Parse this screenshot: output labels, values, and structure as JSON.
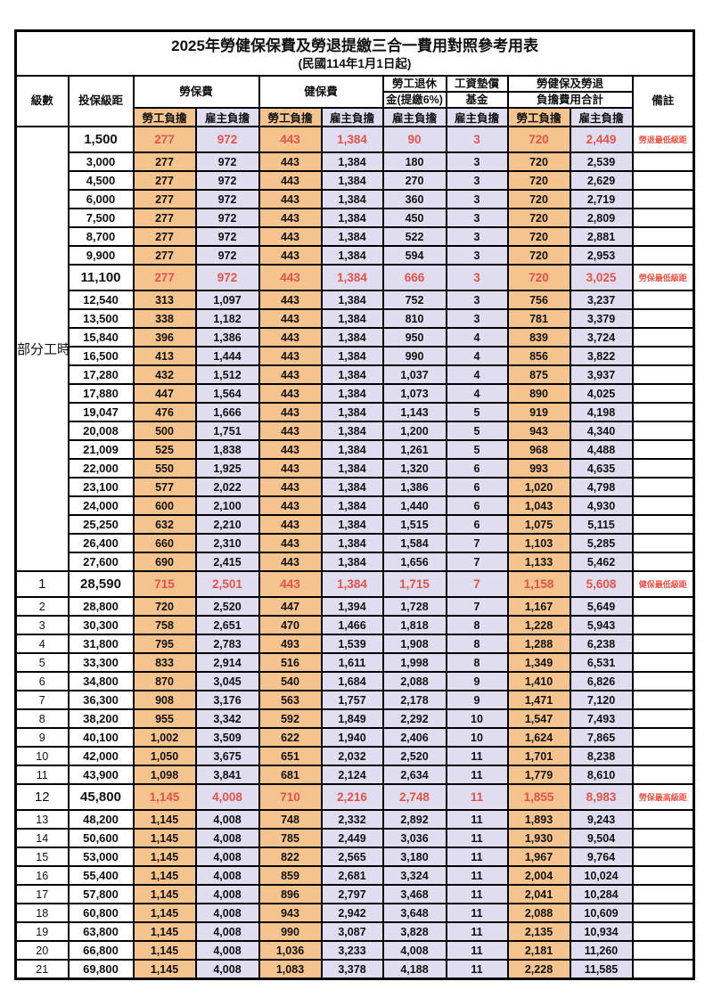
{
  "title": "2025年勞健保保費及勞退提繳三合一費用對照參考用表",
  "subtitle": "(民國114年1月1日起)",
  "header": {
    "level": "級數",
    "bracket": "投保級距",
    "labor_insurance": "勞保費",
    "health_insurance": "健保費",
    "pension_line1": "勞工退休",
    "pension_line2": "金(提繳6%)",
    "wage_fund_line1": "工資墊償",
    "wage_fund_line2": "基金",
    "total_line1": "勞健保及勞退",
    "total_line2": "負擔費用合計",
    "remark": "備註",
    "employee_share": "勞工負擔",
    "employer_share": "雇主負擔"
  },
  "part_time_label": "部分工時",
  "part_time_span": 23,
  "colors": {
    "employee_bg": "#f5c48e",
    "employer_bg": "#dfddef",
    "highlight_text": "#e2544a",
    "remark_text": "#ef5347",
    "border": "#000000"
  },
  "rows": [
    {
      "level": "",
      "bracket": "1,500",
      "cells": [
        "277",
        "972",
        "443",
        "1,384",
        "90",
        "3",
        "720",
        "2,449"
      ],
      "remark": "勞退最低級距",
      "highlight": true
    },
    {
      "level": "",
      "bracket": "3,000",
      "cells": [
        "277",
        "972",
        "443",
        "1,384",
        "180",
        "3",
        "720",
        "2,539"
      ],
      "remark": "",
      "highlight": false
    },
    {
      "level": "",
      "bracket": "4,500",
      "cells": [
        "277",
        "972",
        "443",
        "1,384",
        "270",
        "3",
        "720",
        "2,629"
      ],
      "remark": "",
      "highlight": false
    },
    {
      "level": "",
      "bracket": "6,000",
      "cells": [
        "277",
        "972",
        "443",
        "1,384",
        "360",
        "3",
        "720",
        "2,719"
      ],
      "remark": "",
      "highlight": false
    },
    {
      "level": "",
      "bracket": "7,500",
      "cells": [
        "277",
        "972",
        "443",
        "1,384",
        "450",
        "3",
        "720",
        "2,809"
      ],
      "remark": "",
      "highlight": false
    },
    {
      "level": "",
      "bracket": "8,700",
      "cells": [
        "277",
        "972",
        "443",
        "1,384",
        "522",
        "3",
        "720",
        "2,881"
      ],
      "remark": "",
      "highlight": false
    },
    {
      "level": "",
      "bracket": "9,900",
      "cells": [
        "277",
        "972",
        "443",
        "1,384",
        "594",
        "3",
        "720",
        "2,953"
      ],
      "remark": "",
      "highlight": false
    },
    {
      "level": "",
      "bracket": "11,100",
      "cells": [
        "277",
        "972",
        "443",
        "1,384",
        "666",
        "3",
        "720",
        "3,025"
      ],
      "remark": "勞保最低級距",
      "highlight": true
    },
    {
      "level": "",
      "bracket": "12,540",
      "cells": [
        "313",
        "1,097",
        "443",
        "1,384",
        "752",
        "3",
        "756",
        "3,237"
      ],
      "remark": "",
      "highlight": false
    },
    {
      "level": "",
      "bracket": "13,500",
      "cells": [
        "338",
        "1,182",
        "443",
        "1,384",
        "810",
        "3",
        "781",
        "3,379"
      ],
      "remark": "",
      "highlight": false
    },
    {
      "level": "",
      "bracket": "15,840",
      "cells": [
        "396",
        "1,386",
        "443",
        "1,384",
        "950",
        "4",
        "839",
        "3,724"
      ],
      "remark": "",
      "highlight": false
    },
    {
      "level": "",
      "bracket": "16,500",
      "cells": [
        "413",
        "1,444",
        "443",
        "1,384",
        "990",
        "4",
        "856",
        "3,822"
      ],
      "remark": "",
      "highlight": false
    },
    {
      "level": "",
      "bracket": "17,280",
      "cells": [
        "432",
        "1,512",
        "443",
        "1,384",
        "1,037",
        "4",
        "875",
        "3,937"
      ],
      "remark": "",
      "highlight": false
    },
    {
      "level": "",
      "bracket": "17,880",
      "cells": [
        "447",
        "1,564",
        "443",
        "1,384",
        "1,073",
        "4",
        "890",
        "4,025"
      ],
      "remark": "",
      "highlight": false
    },
    {
      "level": "",
      "bracket": "19,047",
      "cells": [
        "476",
        "1,666",
        "443",
        "1,384",
        "1,143",
        "5",
        "919",
        "4,198"
      ],
      "remark": "",
      "highlight": false
    },
    {
      "level": "",
      "bracket": "20,008",
      "cells": [
        "500",
        "1,751",
        "443",
        "1,384",
        "1,200",
        "5",
        "943",
        "4,340"
      ],
      "remark": "",
      "highlight": false
    },
    {
      "level": "",
      "bracket": "21,009",
      "cells": [
        "525",
        "1,838",
        "443",
        "1,384",
        "1,261",
        "5",
        "968",
        "4,488"
      ],
      "remark": "",
      "highlight": false
    },
    {
      "level": "",
      "bracket": "22,000",
      "cells": [
        "550",
        "1,925",
        "443",
        "1,384",
        "1,320",
        "6",
        "993",
        "4,635"
      ],
      "remark": "",
      "highlight": false
    },
    {
      "level": "",
      "bracket": "23,100",
      "cells": [
        "577",
        "2,022",
        "443",
        "1,384",
        "1,386",
        "6",
        "1,020",
        "4,798"
      ],
      "remark": "",
      "highlight": false
    },
    {
      "level": "",
      "bracket": "24,000",
      "cells": [
        "600",
        "2,100",
        "443",
        "1,384",
        "1,440",
        "6",
        "1,043",
        "4,930"
      ],
      "remark": "",
      "highlight": false
    },
    {
      "level": "",
      "bracket": "25,250",
      "cells": [
        "632",
        "2,210",
        "443",
        "1,384",
        "1,515",
        "6",
        "1,075",
        "5,115"
      ],
      "remark": "",
      "highlight": false
    },
    {
      "level": "",
      "bracket": "26,400",
      "cells": [
        "660",
        "2,310",
        "443",
        "1,384",
        "1,584",
        "7",
        "1,103",
        "5,285"
      ],
      "remark": "",
      "highlight": false
    },
    {
      "level": "",
      "bracket": "27,600",
      "cells": [
        "690",
        "2,415",
        "443",
        "1,384",
        "1,656",
        "7",
        "1,133",
        "5,462"
      ],
      "remark": "",
      "highlight": false
    },
    {
      "level": "1",
      "bracket": "28,590",
      "cells": [
        "715",
        "2,501",
        "443",
        "1,384",
        "1,715",
        "7",
        "1,158",
        "5,608"
      ],
      "remark": "健保最低級距",
      "highlight": true
    },
    {
      "level": "2",
      "bracket": "28,800",
      "cells": [
        "720",
        "2,520",
        "447",
        "1,394",
        "1,728",
        "7",
        "1,167",
        "5,649"
      ],
      "remark": "",
      "highlight": false
    },
    {
      "level": "3",
      "bracket": "30,300",
      "cells": [
        "758",
        "2,651",
        "470",
        "1,466",
        "1,818",
        "8",
        "1,228",
        "5,943"
      ],
      "remark": "",
      "highlight": false
    },
    {
      "level": "4",
      "bracket": "31,800",
      "cells": [
        "795",
        "2,783",
        "493",
        "1,539",
        "1,908",
        "8",
        "1,288",
        "6,238"
      ],
      "remark": "",
      "highlight": false
    },
    {
      "level": "5",
      "bracket": "33,300",
      "cells": [
        "833",
        "2,914",
        "516",
        "1,611",
        "1,998",
        "8",
        "1,349",
        "6,531"
      ],
      "remark": "",
      "highlight": false
    },
    {
      "level": "6",
      "bracket": "34,800",
      "cells": [
        "870",
        "3,045",
        "540",
        "1,684",
        "2,088",
        "9",
        "1,410",
        "6,826"
      ],
      "remark": "",
      "highlight": false
    },
    {
      "level": "7",
      "bracket": "36,300",
      "cells": [
        "908",
        "3,176",
        "563",
        "1,757",
        "2,178",
        "9",
        "1,471",
        "7,120"
      ],
      "remark": "",
      "highlight": false
    },
    {
      "level": "8",
      "bracket": "38,200",
      "cells": [
        "955",
        "3,342",
        "592",
        "1,849",
        "2,292",
        "10",
        "1,547",
        "7,493"
      ],
      "remark": "",
      "highlight": false
    },
    {
      "level": "9",
      "bracket": "40,100",
      "cells": [
        "1,002",
        "3,509",
        "622",
        "1,940",
        "2,406",
        "10",
        "1,624",
        "7,865"
      ],
      "remark": "",
      "highlight": false
    },
    {
      "level": "10",
      "bracket": "42,000",
      "cells": [
        "1,050",
        "3,675",
        "651",
        "2,032",
        "2,520",
        "11",
        "1,701",
        "8,238"
      ],
      "remark": "",
      "highlight": false
    },
    {
      "level": "11",
      "bracket": "43,900",
      "cells": [
        "1,098",
        "3,841",
        "681",
        "2,124",
        "2,634",
        "11",
        "1,779",
        "8,610"
      ],
      "remark": "",
      "highlight": false
    },
    {
      "level": "12",
      "bracket": "45,800",
      "cells": [
        "1,145",
        "4,008",
        "710",
        "2,216",
        "2,748",
        "11",
        "1,855",
        "8,983"
      ],
      "remark": "勞保最高級距",
      "highlight": true
    },
    {
      "level": "13",
      "bracket": "48,200",
      "cells": [
        "1,145",
        "4,008",
        "748",
        "2,332",
        "2,892",
        "11",
        "1,893",
        "9,243"
      ],
      "remark": "",
      "highlight": false
    },
    {
      "level": "14",
      "bracket": "50,600",
      "cells": [
        "1,145",
        "4,008",
        "785",
        "2,449",
        "3,036",
        "11",
        "1,930",
        "9,504"
      ],
      "remark": "",
      "highlight": false
    },
    {
      "level": "15",
      "bracket": "53,000",
      "cells": [
        "1,145",
        "4,008",
        "822",
        "2,565",
        "3,180",
        "11",
        "1,967",
        "9,764"
      ],
      "remark": "",
      "highlight": false
    },
    {
      "level": "16",
      "bracket": "55,400",
      "cells": [
        "1,145",
        "4,008",
        "859",
        "2,681",
        "3,324",
        "11",
        "2,004",
        "10,024"
      ],
      "remark": "",
      "highlight": false
    },
    {
      "level": "17",
      "bracket": "57,800",
      "cells": [
        "1,145",
        "4,008",
        "896",
        "2,797",
        "3,468",
        "11",
        "2,041",
        "10,284"
      ],
      "remark": "",
      "highlight": false
    },
    {
      "level": "18",
      "bracket": "60,800",
      "cells": [
        "1,145",
        "4,008",
        "943",
        "2,942",
        "3,648",
        "11",
        "2,088",
        "10,609"
      ],
      "remark": "",
      "highlight": false
    },
    {
      "level": "19",
      "bracket": "63,800",
      "cells": [
        "1,145",
        "4,008",
        "990",
        "3,087",
        "3,828",
        "11",
        "2,135",
        "10,934"
      ],
      "remark": "",
      "highlight": false
    },
    {
      "level": "20",
      "bracket": "66,800",
      "cells": [
        "1,145",
        "4,008",
        "1,036",
        "3,233",
        "4,008",
        "11",
        "2,181",
        "11,260"
      ],
      "remark": "",
      "highlight": false
    },
    {
      "level": "21",
      "bracket": "69,800",
      "cells": [
        "1,145",
        "4,008",
        "1,083",
        "3,378",
        "4,188",
        "11",
        "2,228",
        "11,585"
      ],
      "remark": "",
      "highlight": false
    }
  ]
}
